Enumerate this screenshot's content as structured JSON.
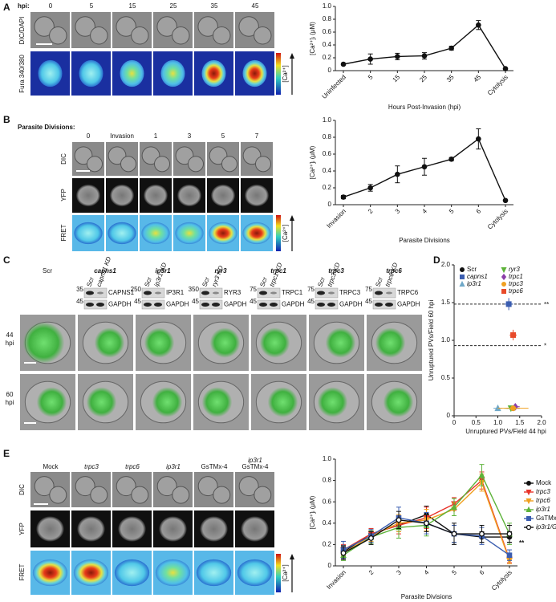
{
  "panels": {
    "A": {
      "letter": "A",
      "hpi_label": "hpi:",
      "timepoints": [
        "0",
        "5",
        "15",
        "25",
        "35",
        "45"
      ],
      "rows": [
        "DIC/DAPI",
        "Fura 340/380"
      ],
      "colorbar": "[Ca²⁺]"
    },
    "B": {
      "letter": "B",
      "header": "Parasite Divisions:",
      "columns": [
        "0",
        "Invasion",
        "1",
        "3",
        "5",
        "7"
      ],
      "rows": [
        "DIC",
        "YFP",
        "FRET"
      ],
      "colorbar": "[Ca²⁺]"
    },
    "C": {
      "letter": "C",
      "columns": [
        "Scr",
        "capns1",
        "ip3r1",
        "ryr3",
        "trpc1",
        "trpc3",
        "trpc6"
      ],
      "blots": [
        {
          "scr": "Scr",
          "kd": "capns1 KD",
          "protein": "CAPNS1",
          "loading": "GAPDH",
          "markers": [
            "35",
            "45"
          ]
        },
        {
          "scr": "Scr",
          "kd": "ip3r1 KD",
          "protein": "IP3R1",
          "loading": "GAPDH",
          "markers": [
            "250",
            "45"
          ]
        },
        {
          "scr": "Scr",
          "kd": "ryr3 KD",
          "protein": "RYR3",
          "loading": "GAPDH",
          "markers": [
            "350",
            "45"
          ]
        },
        {
          "scr": "Scr",
          "kd": "trpc1 KD",
          "protein": "TRPC1",
          "loading": "GAPDH",
          "markers": [
            "75",
            "45"
          ]
        },
        {
          "scr": "Scr",
          "kd": "trpc3 KD",
          "protein": "TRPC3",
          "loading": "GAPDH",
          "markers": [
            "75",
            "45"
          ]
        },
        {
          "scr": "Scr",
          "kd": "trpc6 KD",
          "protein": "TRPC6",
          "loading": "GAPDH",
          "markers": [
            "75",
            "45"
          ]
        }
      ],
      "row_numbers": [
        "44",
        "60"
      ],
      "row_unit": "hpi"
    },
    "D": {
      "letter": "D"
    },
    "E": {
      "letter": "E",
      "columns": [
        [
          "Mock"
        ],
        [
          "trpc3"
        ],
        [
          "trpc6"
        ],
        [
          "ip3r1"
        ],
        [
          "GsTMx-4"
        ],
        [
          "ip3r1",
          "GsTMx-4"
        ]
      ],
      "rows": [
        "DIC",
        "YFP",
        "FRET"
      ],
      "colorbar": "[Ca²⁺]"
    }
  },
  "chart_data": [
    {
      "type": "line",
      "x_label": "Hours Post-Invasion (hpi)",
      "y_label": "[Ca²⁺]ᵢ (μM)",
      "categories": [
        "Uninfected",
        "5",
        "15",
        "25",
        "35",
        "45",
        "Cytolysis"
      ],
      "values": [
        0.1,
        0.18,
        0.22,
        0.23,
        0.35,
        0.71,
        0.03
      ],
      "errors": [
        0,
        0.08,
        0.05,
        0.05,
        0.03,
        0.07,
        0
      ],
      "color": "#111111",
      "ylim": [
        0,
        1
      ],
      "yticks": [
        0,
        0.2,
        0.4,
        0.6,
        0.8,
        {
          "value": 1,
          "label": "1.0"
        }
      ]
    },
    {
      "type": "line",
      "x_label": "Parasite Divisions",
      "y_label": "[Ca²⁺]ᵢ (μM)",
      "categories": [
        "Invasion",
        "2",
        "3",
        "4",
        "5",
        "6",
        "Cytolysis"
      ],
      "values": [
        0.09,
        0.2,
        0.36,
        0.45,
        0.54,
        0.78,
        0.05
      ],
      "errors": [
        0.02,
        0.04,
        0.1,
        0.1,
        0.02,
        0.12,
        0
      ],
      "color": "#111111",
      "ylim": [
        0,
        1
      ],
      "yticks": [
        0,
        0.2,
        0.4,
        0.6,
        0.8,
        {
          "value": 1,
          "label": "1.0"
        }
      ]
    },
    {
      "type": "scatter",
      "x_label": "Unruptured PVs/Field  44 hpi",
      "y_label": "Unruptured PVs/Field  60 hpi",
      "xlim": [
        0,
        2
      ],
      "xticks": [
        0,
        0.5,
        {
          "value": 1,
          "label": "1.0"
        },
        1.5,
        {
          "value": 2,
          "label": "2.0"
        }
      ],
      "ylim": [
        0,
        2
      ],
      "yticks": [
        0,
        0.5,
        {
          "value": 1,
          "label": "1.0"
        },
        1.5,
        {
          "value": 2,
          "label": "2.0"
        }
      ],
      "reference_lines": [
        {
          "value": 1.48,
          "label": "**"
        },
        {
          "value": 0.93,
          "label": "*"
        }
      ],
      "series": [
        {
          "name": "Scr",
          "color": "#111111",
          "marker": "circle",
          "x": [
            1.35
          ],
          "values": [
            0.1
          ],
          "x_errors": [
            0.15
          ],
          "y_errors": [
            0.02
          ]
        },
        {
          "name": "capns1",
          "color": "#3a5db0",
          "marker": "square",
          "x": [
            1.25
          ],
          "values": [
            1.48
          ],
          "x_errors": [
            0.1
          ],
          "y_errors": [
            0.08
          ]
        },
        {
          "name": "ip3r1",
          "color": "#6fa8c8",
          "marker": "triangle",
          "x": [
            1.0
          ],
          "values": [
            0.1
          ],
          "x_errors": [
            0.1
          ],
          "y_errors": [
            0.02
          ]
        },
        {
          "name": "ryr3",
          "color": "#5db33a",
          "marker": "triangle-down",
          "x": [
            1.3
          ],
          "values": [
            0.1
          ],
          "x_errors": [
            0.15
          ],
          "y_errors": [
            0.02
          ]
        },
        {
          "name": "trpc1",
          "color": "#8b3fa8",
          "marker": "diamond",
          "x": [
            1.4
          ],
          "values": [
            0.12
          ],
          "x_errors": [
            0.1
          ],
          "y_errors": [
            0.02
          ]
        },
        {
          "name": "trpc3",
          "color": "#f0a020",
          "marker": "circle",
          "x": [
            1.35
          ],
          "values": [
            0.1
          ],
          "x_errors": [
            0.35
          ],
          "y_errors": [
            0.02
          ]
        },
        {
          "name": "trpc6",
          "color": "#e84a2a",
          "marker": "square",
          "x": [
            1.35
          ],
          "values": [
            1.07
          ],
          "x_errors": [
            0.08
          ],
          "y_errors": [
            0.07
          ]
        }
      ]
    },
    {
      "type": "multiline",
      "x_label": "Parasite Divisions",
      "y_label": "[Ca²⁺]ᵢ (μM)",
      "annotation": "**",
      "categories": [
        "Invasion",
        "2",
        "3",
        "4",
        "5",
        "6",
        "Cytolysis"
      ],
      "ylim": [
        0,
        1
      ],
      "yticks": [
        0,
        0.2,
        0.4,
        0.6,
        0.8,
        {
          "value": 1,
          "label": "1.0"
        }
      ],
      "series": [
        {
          "name": "Mock",
          "color": "#111111",
          "marker": "circle",
          "values": [
            0.13,
            0.3,
            0.38,
            0.48,
            0.3,
            0.27,
            0.27
          ],
          "errors": [
            0.06,
            0.05,
            0.06,
            0.08,
            0.08,
            0.05,
            0.05
          ]
        },
        {
          "name": "trpc3",
          "color": "#e8342a",
          "marker": "triangle-down",
          "values": [
            0.15,
            0.3,
            0.38,
            0.45,
            0.58,
            0.8,
            0.06
          ],
          "errors": [
            0.05,
            0.05,
            0.08,
            0.1,
            0.06,
            0.08,
            0.03
          ]
        },
        {
          "name": "trpc6",
          "color": "#f0a020",
          "marker": "triangle-down",
          "values": [
            0.12,
            0.28,
            0.4,
            0.43,
            0.53,
            0.78,
            0.05
          ],
          "errors": [
            0.05,
            0.05,
            0.08,
            0.1,
            0.06,
            0.08,
            0.03
          ]
        },
        {
          "name": "ip3r1",
          "color": "#5db33a",
          "marker": "triangle",
          "values": [
            0.1,
            0.27,
            0.36,
            0.38,
            0.55,
            0.85,
            0.3
          ],
          "errors": [
            0.05,
            0.06,
            0.1,
            0.1,
            0.08,
            0.1,
            0.1
          ]
        },
        {
          "name": "GsTMx-4",
          "color": "#3a5db0",
          "marker": "square",
          "values": [
            0.15,
            0.28,
            0.45,
            0.4,
            0.3,
            0.28,
            0.1
          ],
          "errors": [
            0.08,
            0.06,
            0.1,
            0.1,
            0.08,
            0.08,
            0.05
          ]
        },
        {
          "name": "ip3r1/GsTMx-4",
          "color": "#111111",
          "marker": "open-circle",
          "values": [
            0.12,
            0.26,
            0.43,
            0.4,
            0.3,
            0.3,
            0.3
          ],
          "errors": [
            0.06,
            0.06,
            0.08,
            0.08,
            0.1,
            0.08,
            0.08
          ]
        }
      ]
    }
  ]
}
